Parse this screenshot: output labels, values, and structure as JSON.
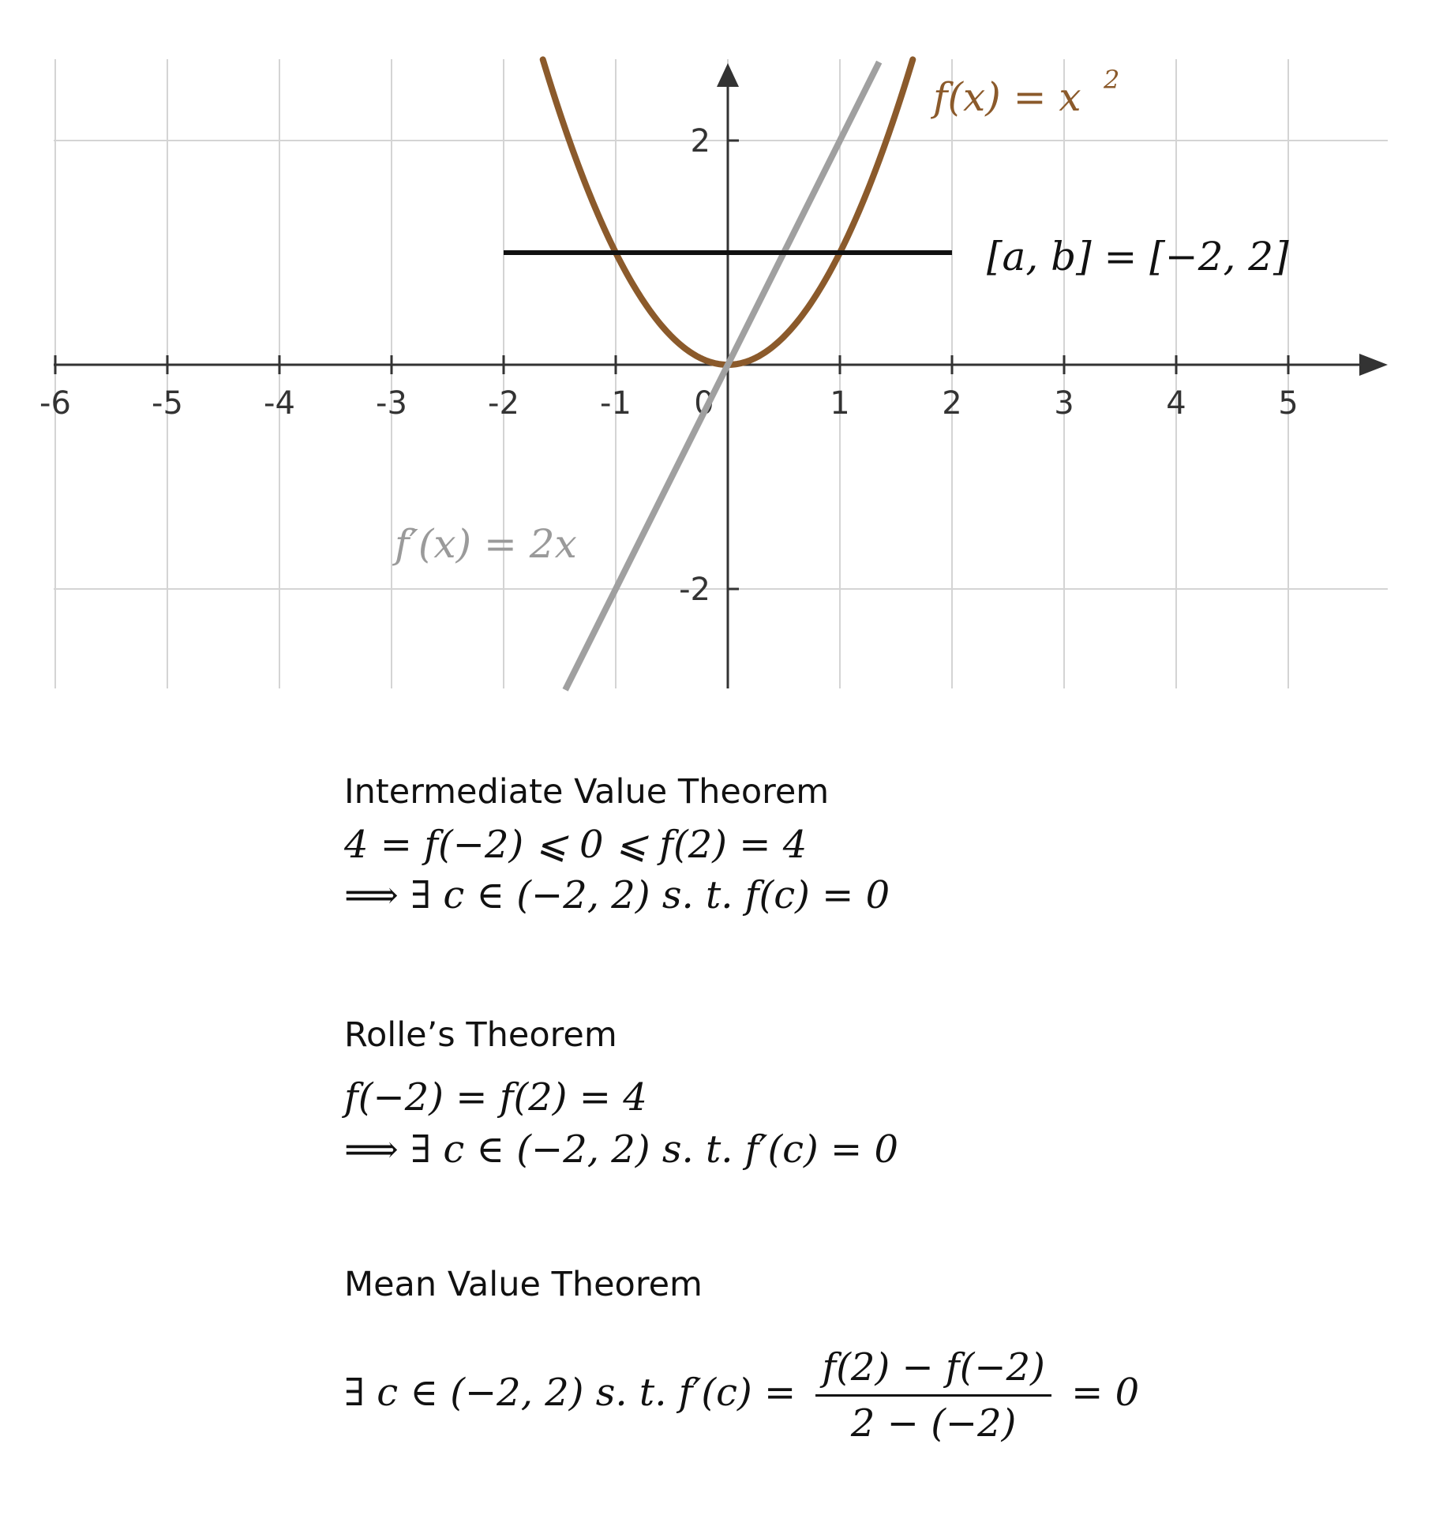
{
  "chart_data": {
    "type": "line",
    "title": "",
    "xlabel": "",
    "ylabel": "",
    "xlim": [
      -6,
      5.9
    ],
    "ylim": [
      -2.9,
      2.7
    ],
    "grid": true,
    "x_ticks": [
      "-6",
      "-5",
      "-4",
      "-3",
      "-2",
      "-1",
      "0",
      "1",
      "2",
      "3",
      "4",
      "5"
    ],
    "y_ticks": [
      "2",
      "-2"
    ],
    "series": [
      {
        "name": "f(x) = x²",
        "label_text": "f(x)  =  x",
        "label_sup": "2",
        "color": "#8B5A2B",
        "expression": "x^2",
        "x_range": [
          -1.65,
          1.65
        ]
      },
      {
        "name": "f′(x) = 2x",
        "label_text": "f′(x)  =  2x",
        "color": "#A0A0A0",
        "expression": "2x",
        "x_range": [
          -1.45,
          1.35
        ]
      },
      {
        "name": "[a, b] = [−2, 2]",
        "label_text": "[a,  b]  =  [−2,  2]",
        "color": "#111111",
        "y": 1,
        "x_range": [
          -2,
          2
        ]
      }
    ]
  },
  "theorems": [
    {
      "heading": "Intermediate Value Theorem",
      "lines": [
        "4  =  f(−2)  ⩽  0  ⩽  f(2)  =  4",
        " ⟹  ∃ c  ∈  (−2, 2) s. t.  f(c)  =  0"
      ]
    },
    {
      "heading": "Rolle’s Theorem",
      "lines": [
        "f(−2)  =  f(2)  =  4",
        " ⟹  ∃ c  ∈  (−2, 2) s. t.  f′(c)  =  0"
      ]
    },
    {
      "heading": "Mean Value Theorem",
      "line_prefix": "∃ c  ∈  (−2, 2) s. t.  f′(c)  = ",
      "numerator": "f(2) − f(−2)",
      "denominator": "2 − (−2)",
      "line_suffix": "= 0"
    }
  ]
}
